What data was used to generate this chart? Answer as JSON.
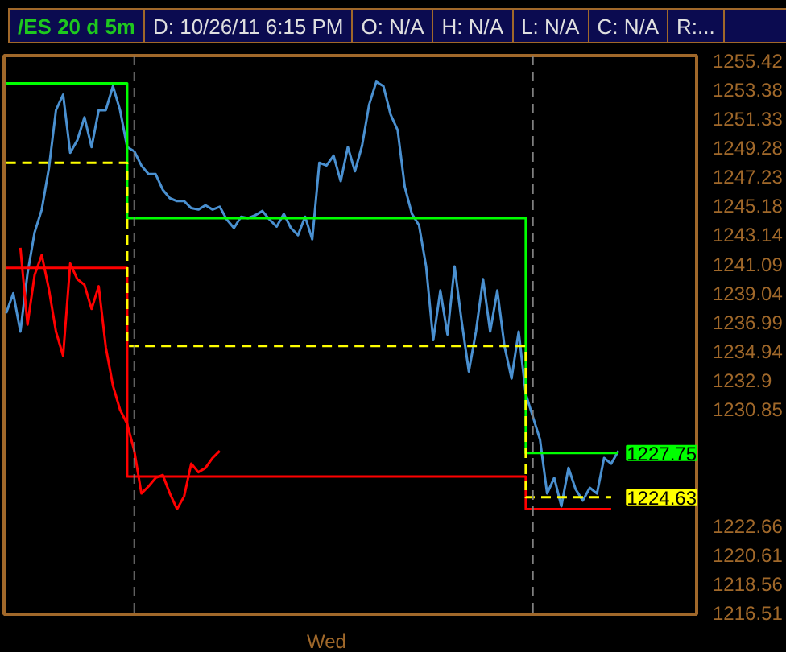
{
  "chart_data": {
    "type": "line",
    "title": "/ES 20 d 5m",
    "annotations": [
      "D: 10/26/11 6:15 PM",
      "O: N/A",
      "H: N/A",
      "L: N/A",
      "C: N/A",
      "R:..."
    ],
    "categories": [
      null,
      null,
      null,
      null,
      null,
      null,
      null,
      null,
      null,
      null,
      null,
      null,
      null,
      null,
      null,
      null,
      null,
      null,
      null,
      null,
      null,
      null,
      null,
      null,
      null,
      null,
      null,
      null,
      null,
      null,
      null,
      null,
      null,
      null,
      null,
      null,
      null,
      null,
      null,
      null,
      null,
      null,
      null,
      null,
      null,
      "Wed",
      null,
      null,
      null,
      null,
      null,
      null,
      null,
      null,
      null,
      null,
      null,
      null,
      null,
      null,
      null,
      null,
      null,
      null,
      null,
      null,
      null,
      null,
      null,
      null,
      null,
      null,
      null,
      null,
      null,
      null,
      null,
      null,
      null,
      null,
      null,
      null,
      null,
      null,
      null,
      null,
      null
    ],
    "ylim": [
      1216.4,
      1255.75
    ],
    "yticks": [
      1255.42,
      1253.38,
      1251.33,
      1249.28,
      1247.23,
      1245.18,
      1243.14,
      1241.09,
      1239.04,
      1236.99,
      1234.94,
      1232.9,
      1230.85,
      1222.66,
      1220.61,
      1218.56,
      1216.51
    ],
    "grid": false,
    "series": [
      {
        "color": "#4a90d0",
        "values": [
          1237.6,
          1239.0,
          1236.3,
          1240.4,
          1243.3,
          1244.9,
          1247.8,
          1251.9,
          1253.0,
          1248.9,
          1249.8,
          1251.4,
          1249.3,
          1251.9,
          1251.9,
          1253.6,
          1251.9,
          1249.3,
          1249.0,
          1248.0,
          1247.4,
          1247.4,
          1246.3,
          1245.7,
          1245.5,
          1245.5,
          1245.0,
          1244.9,
          1245.2,
          1244.9,
          1245.1,
          1244.2,
          1243.6,
          1244.4,
          1244.3,
          1244.5,
          1244.8,
          1244.2,
          1243.7,
          1244.6,
          1243.6,
          1243.1,
          1244.4,
          1242.8,
          1248.2,
          1248.0,
          1248.7,
          1246.9,
          1249.3,
          1247.6,
          1249.4,
          1252.3,
          1253.9,
          1253.6,
          1251.6,
          1250.5,
          1246.5,
          1244.6,
          1243.8,
          1240.9,
          1235.7,
          1239.2,
          1236.1,
          1240.9,
          1237.0,
          1233.5,
          1236.3,
          1240.0,
          1236.3,
          1239.2,
          1235.3,
          1233.0,
          1236.3,
          1231.9,
          1230.3,
          1228.7,
          1224.9,
          1226.0,
          1224.0,
          1226.7,
          1225.2,
          1224.4,
          1225.3,
          1224.9,
          1227.4,
          1227.0,
          1227.9
        ]
      },
      {
        "color": "#ff0000",
        "values": [
          null,
          null,
          1242.2,
          1236.8,
          1240.3,
          1241.7,
          1239.3,
          1236.3,
          1234.6,
          1241.1,
          1240.0,
          1239.6,
          1237.9,
          1239.5,
          1235.2,
          1232.5,
          1230.8,
          1229.8,
          1227.9,
          1224.9,
          1225.4,
          1226.0,
          1226.2,
          1224.9,
          1223.8,
          1224.7,
          1227.0,
          1226.4,
          1226.7,
          1227.4,
          1227.9,
          null,
          null,
          null,
          null,
          null,
          null,
          null,
          null,
          null,
          null,
          null,
          null,
          null,
          null,
          null,
          null,
          null,
          null,
          null,
          null,
          null,
          null,
          null,
          null,
          null,
          null,
          null,
          null,
          null,
          null,
          null,
          null,
          null,
          null,
          null,
          null,
          null,
          null,
          null,
          null,
          null,
          null,
          null,
          null,
          null,
          null,
          null,
          null,
          null,
          null,
          null,
          null,
          null,
          null,
          null,
          null
        ]
      },
      {
        "type": "step",
        "color": "#00ff00",
        "values": [
          1253.8,
          1253.8,
          1253.8,
          1253.8,
          1253.8,
          1253.8,
          1253.8,
          1253.8,
          1253.8,
          1253.8,
          1253.8,
          1253.8,
          1253.8,
          1253.8,
          1253.8,
          1253.8,
          1253.8,
          1244.3,
          1244.3,
          1244.3,
          1244.3,
          1244.3,
          1244.3,
          1244.3,
          1244.3,
          1244.3,
          1244.3,
          1244.3,
          1244.3,
          1244.3,
          1244.3,
          1244.3,
          1244.3,
          1244.3,
          1244.3,
          1244.3,
          1244.3,
          1244.3,
          1244.3,
          1244.3,
          1244.3,
          1244.3,
          1244.3,
          1244.3,
          1244.3,
          1244.3,
          1244.3,
          1244.3,
          1244.3,
          1244.3,
          1244.3,
          1244.3,
          1244.3,
          1244.3,
          1244.3,
          1244.3,
          1244.3,
          1244.3,
          1244.3,
          1244.3,
          1244.3,
          1244.3,
          1244.3,
          1244.3,
          1244.3,
          1244.3,
          1244.3,
          1244.3,
          1244.3,
          1244.3,
          1244.3,
          1244.3,
          1244.3,
          1227.75,
          1227.75,
          1227.75,
          1227.75,
          1227.75,
          1227.75,
          1227.75,
          1227.75,
          1227.75,
          1227.75,
          1227.75,
          1227.75,
          1227.75,
          1227.75
        ],
        "value_labels": [
          null,
          null,
          null,
          null,
          null,
          null,
          null,
          null,
          null,
          null,
          null,
          null,
          null,
          null,
          null,
          null,
          null,
          null,
          null,
          null,
          null,
          null,
          null,
          null,
          null,
          null,
          null,
          null,
          null,
          null,
          null,
          null,
          null,
          null,
          null,
          null,
          null,
          null,
          null,
          null,
          null,
          null,
          null,
          null,
          null,
          null,
          null,
          null,
          null,
          null,
          null,
          null,
          null,
          null,
          null,
          null,
          null,
          null,
          null,
          null,
          null,
          null,
          null,
          null,
          null,
          null,
          null,
          null,
          null,
          null,
          null,
          null,
          null,
          null,
          null,
          null,
          null,
          null,
          null,
          null,
          null,
          null,
          null,
          null,
          null,
          null,
          "1227.75"
        ]
      },
      {
        "type": "step",
        "color": "#ff0000",
        "values": [
          1240.8,
          1240.8,
          1240.8,
          1240.8,
          1240.8,
          1240.8,
          1240.8,
          1240.8,
          1240.8,
          1240.8,
          1240.8,
          1240.8,
          1240.8,
          1240.8,
          1240.8,
          1240.8,
          1240.8,
          1226.1,
          1226.1,
          1226.1,
          1226.1,
          1226.1,
          1226.1,
          1226.1,
          1226.1,
          1226.1,
          1226.1,
          1226.1,
          1226.1,
          1226.1,
          1226.1,
          1226.1,
          1226.1,
          1226.1,
          1226.1,
          1226.1,
          1226.1,
          1226.1,
          1226.1,
          1226.1,
          1226.1,
          1226.1,
          1226.1,
          1226.1,
          1226.1,
          1226.1,
          1226.1,
          1226.1,
          1226.1,
          1226.1,
          1226.1,
          1226.1,
          1226.1,
          1226.1,
          1226.1,
          1226.1,
          1226.1,
          1226.1,
          1226.1,
          1226.1,
          1226.1,
          1226.1,
          1226.1,
          1226.1,
          1226.1,
          1226.1,
          1226.1,
          1226.1,
          1226.1,
          1226.1,
          1226.1,
          1226.1,
          1226.1,
          1223.8,
          1223.8,
          1223.8,
          1223.8,
          1223.8,
          1223.8,
          1223.8,
          1223.8,
          1223.8,
          1223.8,
          1223.8,
          1223.8,
          1223.8,
          null
        ]
      },
      {
        "type": "step",
        "color": "#ffff00",
        "line_style": "dashed",
        "values": [
          1248.2,
          1248.2,
          1248.2,
          1248.2,
          1248.2,
          1248.2,
          1248.2,
          1248.2,
          1248.2,
          1248.2,
          1248.2,
          1248.2,
          1248.2,
          1248.2,
          1248.2,
          1248.2,
          1248.2,
          1235.3,
          1235.3,
          1235.3,
          1235.3,
          1235.3,
          1235.3,
          1235.3,
          1235.3,
          1235.3,
          1235.3,
          1235.3,
          1235.3,
          1235.3,
          1235.3,
          1235.3,
          1235.3,
          1235.3,
          1235.3,
          1235.3,
          1235.3,
          1235.3,
          1235.3,
          1235.3,
          1235.3,
          1235.3,
          1235.3,
          1235.3,
          1235.3,
          1235.3,
          1235.3,
          1235.3,
          1235.3,
          1235.3,
          1235.3,
          1235.3,
          1235.3,
          1235.3,
          1235.3,
          1235.3,
          1235.3,
          1235.3,
          1235.3,
          1235.3,
          1235.3,
          1235.3,
          1235.3,
          1235.3,
          1235.3,
          1235.3,
          1235.3,
          1235.3,
          1235.3,
          1235.3,
          1235.3,
          1235.3,
          1235.3,
          1224.63,
          1224.63,
          1224.63,
          1224.63,
          1224.63,
          1224.63,
          1224.63,
          1224.63,
          1224.63,
          1224.63,
          1224.63,
          1224.63,
          1224.63,
          null
        ],
        "value_labels": [
          null,
          null,
          null,
          null,
          null,
          null,
          null,
          null,
          null,
          null,
          null,
          null,
          null,
          null,
          null,
          null,
          null,
          null,
          null,
          null,
          null,
          null,
          null,
          null,
          null,
          null,
          null,
          null,
          null,
          null,
          null,
          null,
          null,
          null,
          null,
          null,
          null,
          null,
          null,
          null,
          null,
          null,
          null,
          null,
          null,
          null,
          null,
          null,
          null,
          null,
          null,
          null,
          null,
          null,
          null,
          null,
          null,
          null,
          null,
          null,
          null,
          null,
          null,
          null,
          null,
          null,
          null,
          null,
          null,
          null,
          null,
          null,
          null,
          null,
          null,
          null,
          null,
          null,
          null,
          null,
          null,
          null,
          null,
          null,
          null,
          "1224.63",
          null
        ]
      }
    ]
  }
}
